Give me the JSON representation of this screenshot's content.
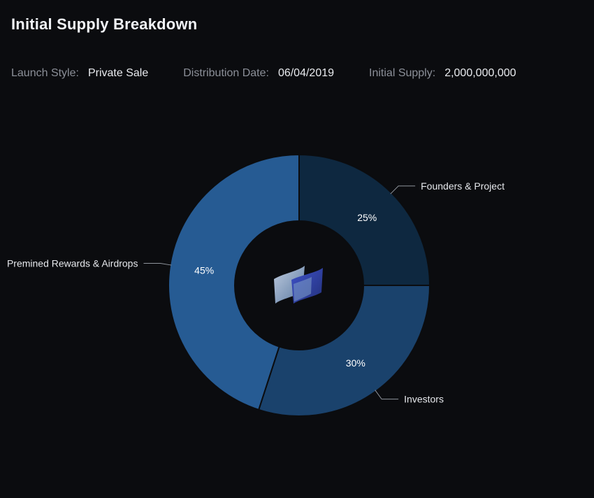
{
  "header": {
    "title": "Initial Supply Breakdown",
    "meta": [
      {
        "label": "Launch Style:",
        "value": "Private Sale"
      },
      {
        "label": "Distribution Date:",
        "value": "06/04/2019"
      },
      {
        "label": "Initial Supply:",
        "value": "2,000,000,000"
      }
    ]
  },
  "chart_data": {
    "type": "pie",
    "title": "",
    "legend": "none",
    "slices": [
      {
        "name": "Founders & Project",
        "value": 25,
        "label": "25%",
        "color": "#0e2840"
      },
      {
        "name": "Investors",
        "value": 30,
        "label": "30%",
        "color": "#1a426c"
      },
      {
        "name": "Premined Rewards & Airdrops",
        "value": 45,
        "label": "45%",
        "color": "#265b93"
      }
    ]
  },
  "center_icon": "project-logo-icon"
}
